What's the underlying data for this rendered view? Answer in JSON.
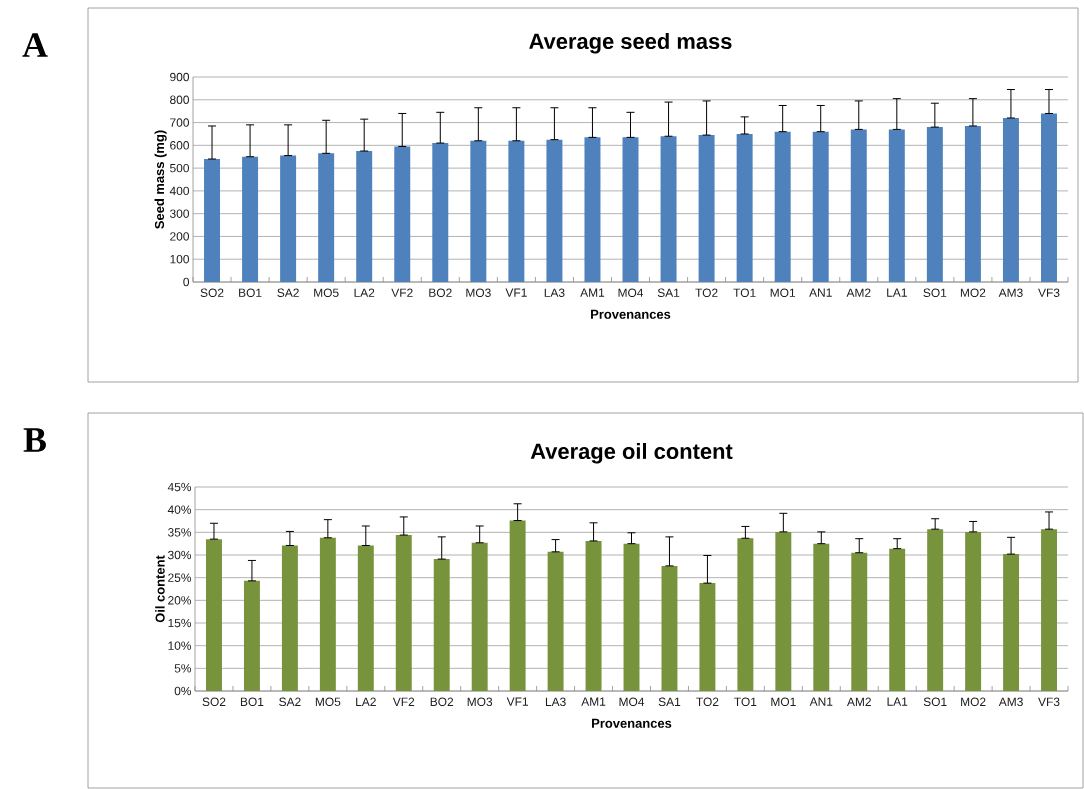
{
  "chart_data": [
    {
      "type": "bar",
      "title": "Average seed mass",
      "xlabel": "Provenances",
      "ylabel": "Seed mass (mg)",
      "annotations": [
        "A"
      ],
      "categories": [
        "SO2",
        "BO1",
        "SA2",
        "MO5",
        "LA2",
        "VF2",
        "BO2",
        "MO3",
        "VF1",
        "LA3",
        "AM1",
        "MO4",
        "SA1",
        "TO2",
        "TO1",
        "MO1",
        "AN1",
        "AM2",
        "LA1",
        "SO1",
        "MO2",
        "AM3",
        "VF3"
      ],
      "values": [
        540,
        550,
        555,
        565,
        575,
        595,
        610,
        620,
        620,
        625,
        635,
        635,
        640,
        645,
        650,
        660,
        660,
        670,
        670,
        680,
        685,
        720,
        740
      ],
      "errors": [
        [
          540,
          685
        ],
        [
          550,
          690
        ],
        [
          555,
          690
        ],
        [
          565,
          710
        ],
        [
          575,
          715
        ],
        [
          595,
          740
        ],
        [
          610,
          745
        ],
        [
          620,
          765
        ],
        [
          620,
          765
        ],
        [
          625,
          765
        ],
        [
          635,
          765
        ],
        [
          635,
          745
        ],
        [
          640,
          790
        ],
        [
          645,
          795
        ],
        [
          650,
          725
        ],
        [
          660,
          775
        ],
        [
          660,
          775
        ],
        [
          670,
          795
        ],
        [
          670,
          805
        ],
        [
          680,
          785
        ],
        [
          685,
          805
        ],
        [
          720,
          845
        ],
        [
          740,
          845
        ]
      ],
      "color": "#4f81bd",
      "ylim": [
        0,
        900
      ],
      "yticks": [
        0,
        100,
        200,
        300,
        400,
        500,
        600,
        700,
        800,
        900
      ],
      "grid": "y"
    },
    {
      "type": "bar",
      "title": "Average oil content",
      "xlabel": "Provenances",
      "ylabel": "Oil content",
      "annotations": [
        "B"
      ],
      "categories": [
        "SO2",
        "BO1",
        "SA2",
        "MO5",
        "LA2",
        "VF2",
        "BO2",
        "MO3",
        "VF1",
        "LA3",
        "AM1",
        "MO4",
        "SA1",
        "TO2",
        "TO1",
        "MO1",
        "AN1",
        "AM2",
        "LA1",
        "SO1",
        "MO2",
        "AM3",
        "VF3"
      ],
      "values": [
        33.5,
        24.3,
        32.1,
        33.8,
        32.1,
        34.4,
        29.1,
        32.7,
        37.6,
        30.7,
        33.1,
        32.5,
        27.6,
        23.8,
        33.7,
        35.1,
        32.5,
        30.5,
        31.4,
        35.7,
        35.1,
        30.2,
        35.7
      ],
      "errors": [
        [
          33.5,
          37.0
        ],
        [
          24.3,
          28.8
        ],
        [
          32.1,
          35.2
        ],
        [
          33.8,
          37.8
        ],
        [
          32.1,
          36.4
        ],
        [
          34.4,
          38.4
        ],
        [
          29.1,
          34.0
        ],
        [
          32.7,
          36.4
        ],
        [
          37.6,
          41.3
        ],
        [
          30.7,
          33.4
        ],
        [
          33.1,
          37.1
        ],
        [
          32.5,
          34.9
        ],
        [
          27.6,
          34.0
        ],
        [
          23.8,
          29.9
        ],
        [
          33.7,
          36.3
        ],
        [
          35.1,
          39.2
        ],
        [
          32.5,
          35.1
        ],
        [
          30.5,
          33.6
        ],
        [
          31.4,
          33.6
        ],
        [
          35.7,
          38.0
        ],
        [
          35.1,
          37.4
        ],
        [
          30.2,
          33.9
        ],
        [
          35.7,
          39.5
        ]
      ],
      "color": "#77933c",
      "ylim": [
        0,
        45
      ],
      "yticks": [
        {
          "value": 0,
          "label": "0%"
        },
        {
          "value": 5,
          "label": "5%"
        },
        {
          "value": 10,
          "label": "10%"
        },
        {
          "value": 15,
          "label": "15%"
        },
        {
          "value": 20,
          "label": "20%"
        },
        {
          "value": 25,
          "label": "25%"
        },
        {
          "value": 30,
          "label": "30%"
        },
        {
          "value": 35,
          "label": "35%"
        },
        {
          "value": 40,
          "label": "40%"
        },
        {
          "value": 45,
          "label": "45%"
        }
      ],
      "grid": "y"
    }
  ]
}
